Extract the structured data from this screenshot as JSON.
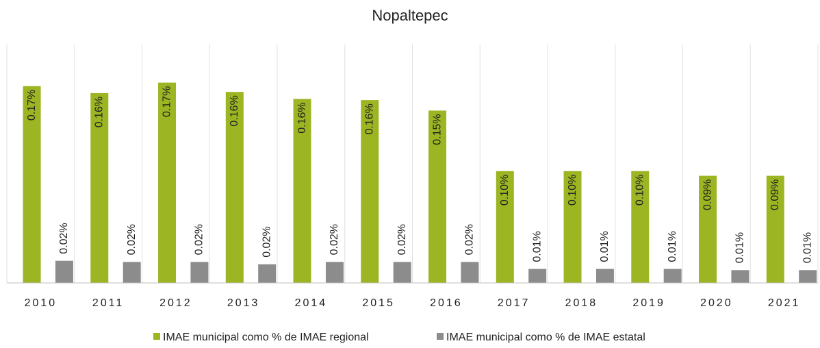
{
  "chart_data": {
    "type": "bar",
    "title": "Nopaltepec",
    "categories": [
      "2010",
      "2011",
      "2012",
      "2013",
      "2014",
      "2015",
      "2016",
      "2017",
      "2018",
      "2019",
      "2020",
      "2021"
    ],
    "series": [
      {
        "name": "IMAE municipal como % de IMAE regional",
        "color": "#9cb523",
        "values": [
          0.169,
          0.163,
          0.172,
          0.164,
          0.158,
          0.157,
          0.148,
          0.096,
          0.096,
          0.096,
          0.092,
          0.092
        ],
        "value_labels": [
          "0.17%",
          "0.16%",
          "0.17%",
          "0.16%",
          "0.16%",
          "0.16%",
          "0.15%",
          "0.10%",
          "0.10%",
          "0.10%",
          "0.09%",
          "0.09%"
        ]
      },
      {
        "name": "IMAE municipal como % de IMAE estatal",
        "color": "#8c8c8c",
        "values": [
          0.019,
          0.018,
          0.018,
          0.016,
          0.018,
          0.018,
          0.018,
          0.012,
          0.012,
          0.012,
          0.011,
          0.011
        ],
        "value_labels": [
          "0.02%",
          "0.02%",
          "0.02%",
          "0.02%",
          "0.02%",
          "0.02%",
          "0.02%",
          "0.01%",
          "0.01%",
          "0.01%",
          "0.01%",
          "0.01%"
        ]
      }
    ],
    "ylim": [
      0,
      0.2
    ]
  }
}
